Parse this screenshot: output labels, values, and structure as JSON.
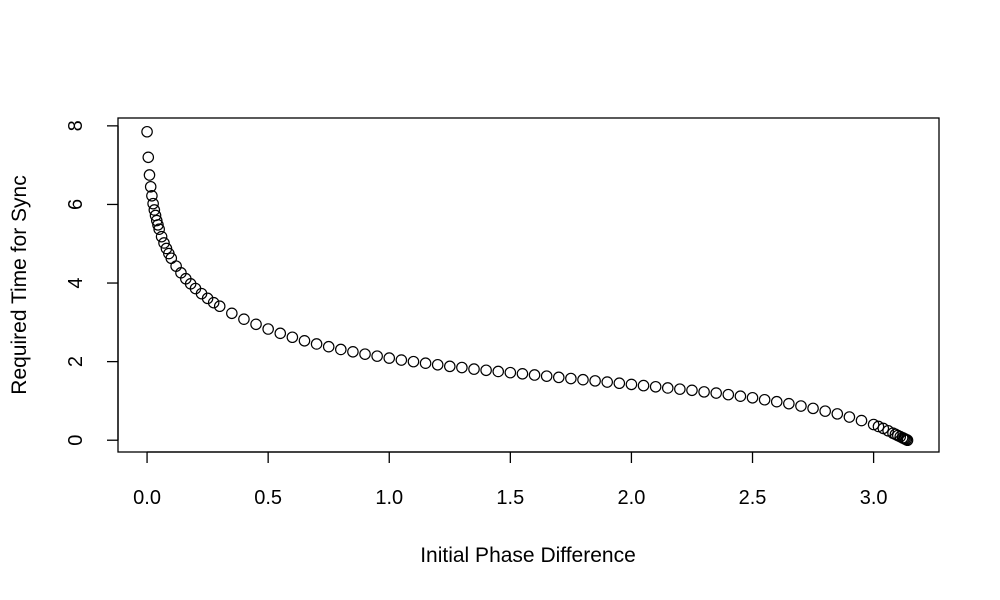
{
  "chart_data": {
    "type": "scatter",
    "title": "",
    "xlabel": "Initial Phase Difference",
    "ylabel": "Required Time for Sync",
    "xlim": [
      -0.12,
      3.27
    ],
    "ylim": [
      -0.3,
      8.2
    ],
    "xticks": [
      0.0,
      0.5,
      1.0,
      1.5,
      2.0,
      2.5,
      3.0
    ],
    "xtick_labels": [
      "0.0",
      "0.5",
      "1.0",
      "1.5",
      "2.0",
      "2.5",
      "3.0"
    ],
    "yticks": [
      0,
      2,
      4,
      6,
      8
    ],
    "ytick_labels": [
      "0",
      "2",
      "4",
      "6",
      "8"
    ],
    "grid": false,
    "legend": "none",
    "marker": "open-circle",
    "series": [
      {
        "x": [
          0.0,
          0.005,
          0.01,
          0.015,
          0.02,
          0.025,
          0.03,
          0.035,
          0.04,
          0.045,
          0.05,
          0.06,
          0.07,
          0.08,
          0.09,
          0.1,
          0.12,
          0.14,
          0.16,
          0.18,
          0.2,
          0.225,
          0.25,
          0.275,
          0.3,
          0.35,
          0.4,
          0.45,
          0.5,
          0.55,
          0.6,
          0.65,
          0.7,
          0.75,
          0.8,
          0.85,
          0.9,
          0.95,
          1.0,
          1.05,
          1.1,
          1.15,
          1.2,
          1.25,
          1.3,
          1.35,
          1.4,
          1.45,
          1.5,
          1.55,
          1.6,
          1.65,
          1.7,
          1.75,
          1.8,
          1.85,
          1.9,
          1.95,
          2.0,
          2.05,
          2.1,
          2.15,
          2.2,
          2.25,
          2.3,
          2.35,
          2.4,
          2.45,
          2.5,
          2.55,
          2.6,
          2.65,
          2.7,
          2.75,
          2.8,
          2.85,
          2.9,
          2.95,
          3.0,
          3.02,
          3.04,
          3.06,
          3.08,
          3.09,
          3.1,
          3.11,
          3.12,
          3.125,
          3.13,
          3.135,
          3.14
        ],
        "y": [
          7.85,
          7.2,
          6.75,
          6.45,
          6.22,
          6.02,
          5.86,
          5.72,
          5.59,
          5.48,
          5.37,
          5.18,
          5.02,
          4.88,
          4.75,
          4.63,
          4.43,
          4.26,
          4.11,
          3.98,
          3.86,
          3.73,
          3.61,
          3.5,
          3.41,
          3.23,
          3.08,
          2.95,
          2.83,
          2.72,
          2.62,
          2.53,
          2.45,
          2.38,
          2.31,
          2.25,
          2.19,
          2.14,
          2.09,
          2.04,
          2.0,
          1.96,
          1.92,
          1.88,
          1.85,
          1.81,
          1.78,
          1.75,
          1.72,
          1.69,
          1.66,
          1.63,
          1.6,
          1.57,
          1.54,
          1.51,
          1.48,
          1.45,
          1.42,
          1.39,
          1.36,
          1.33,
          1.3,
          1.27,
          1.23,
          1.2,
          1.16,
          1.12,
          1.08,
          1.03,
          0.98,
          0.93,
          0.87,
          0.81,
          0.74,
          0.67,
          0.59,
          0.5,
          0.4,
          0.35,
          0.3,
          0.24,
          0.18,
          0.15,
          0.12,
          0.09,
          0.06,
          0.045,
          0.03,
          0.015,
          0.0
        ]
      }
    ]
  }
}
